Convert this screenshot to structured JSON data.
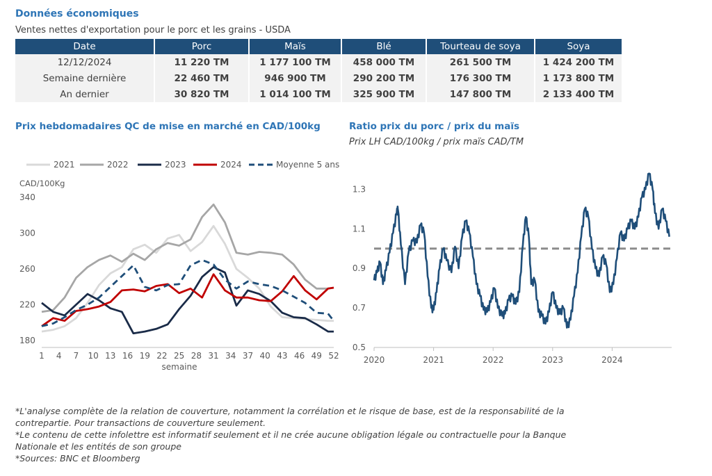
{
  "header": {
    "title": "Données économiques",
    "subtitle": "Ventes nettes d'exportation pour le porc et les grains - USDA"
  },
  "table": {
    "columns": [
      "Date",
      "Porc",
      "Maïs",
      "Blé",
      "Tourteau de soya",
      "Soya"
    ],
    "rows": [
      [
        "12/12/2024",
        "11 220 TM",
        "1 177 100 TM",
        "458 000 TM",
        "261 500 TM",
        "1 424 200 TM"
      ],
      [
        "Semaine dernière",
        "22 460 TM",
        "946 900 TM",
        "290 200 TM",
        "176 300 TM",
        "1 173 800 TM"
      ],
      [
        "An dernier",
        "30 820 TM",
        "1 014 100 TM",
        "325 900 TM",
        "147 800 TM",
        "2 133 400 TM"
      ]
    ]
  },
  "chart_data": [
    {
      "type": "line",
      "title": "Prix hebdomadaires QC de mise en marché en CAD/100kg",
      "ylabel": "CAD/100Kg",
      "xlabel": "semaine",
      "ylim": [
        180,
        340
      ],
      "xlim": [
        1,
        52
      ],
      "yticks": [
        180,
        220,
        260,
        300,
        340
      ],
      "xticks": [
        1,
        4,
        7,
        10,
        13,
        16,
        19,
        22,
        25,
        28,
        31,
        34,
        37,
        40,
        43,
        46,
        49,
        52
      ],
      "legend_position": "top",
      "series": [
        {
          "name": "2021",
          "color": "#d9d9d9",
          "dash": false,
          "x": [
            1,
            3,
            5,
            7,
            9,
            11,
            13,
            15,
            17,
            19,
            21,
            23,
            25,
            27,
            29,
            31,
            33,
            35,
            37,
            39,
            41,
            43,
            45,
            47,
            49,
            51,
            52
          ],
          "y": [
            190,
            192,
            196,
            205,
            222,
            242,
            255,
            262,
            282,
            287,
            278,
            294,
            298,
            280,
            290,
            308,
            288,
            260,
            250,
            238,
            218,
            206,
            205,
            204,
            203,
            202,
            202
          ]
        },
        {
          "name": "2022",
          "color": "#a6a6a6",
          "dash": false,
          "x": [
            1,
            3,
            5,
            7,
            9,
            11,
            13,
            15,
            17,
            19,
            21,
            23,
            25,
            27,
            29,
            31,
            33,
            35,
            37,
            39,
            41,
            43,
            45,
            47,
            49,
            51,
            52
          ],
          "y": [
            212,
            214,
            228,
            250,
            262,
            270,
            275,
            268,
            277,
            270,
            282,
            289,
            286,
            293,
            318,
            332,
            312,
            278,
            276,
            279,
            278,
            276,
            265,
            248,
            238,
            238,
            239
          ]
        },
        {
          "name": "2023",
          "color": "#1a2b48",
          "dash": false,
          "x": [
            1,
            3,
            5,
            7,
            9,
            11,
            13,
            15,
            17,
            19,
            21,
            23,
            25,
            27,
            29,
            31,
            33,
            35,
            37,
            39,
            41,
            43,
            45,
            47,
            49,
            51,
            52
          ],
          "y": [
            222,
            212,
            208,
            220,
            232,
            225,
            216,
            212,
            188,
            190,
            193,
            198,
            215,
            230,
            251,
            262,
            256,
            219,
            236,
            232,
            224,
            211,
            206,
            205,
            198,
            190,
            190
          ]
        },
        {
          "name": "2024",
          "color": "#c00000",
          "dash": false,
          "x": [
            1,
            3,
            5,
            7,
            9,
            11,
            13,
            15,
            17,
            19,
            21,
            23,
            25,
            27,
            29,
            31,
            33,
            35,
            37,
            39,
            41,
            43,
            45,
            47,
            49,
            51,
            52
          ],
          "y": [
            196,
            205,
            202,
            213,
            215,
            218,
            223,
            236,
            237,
            235,
            241,
            243,
            233,
            238,
            228,
            254,
            236,
            228,
            228,
            225,
            224,
            235,
            252,
            236,
            226,
            238,
            239
          ]
        },
        {
          "name": "Moyenne 5 ans",
          "color": "#1f4e79",
          "dash": true,
          "x": [
            1,
            3,
            5,
            7,
            9,
            11,
            13,
            15,
            17,
            19,
            21,
            23,
            25,
            27,
            29,
            31,
            33,
            35,
            37,
            39,
            41,
            43,
            45,
            47,
            49,
            51,
            52
          ],
          "y": [
            196,
            199,
            206,
            214,
            220,
            228,
            240,
            252,
            264,
            240,
            236,
            242,
            243,
            264,
            270,
            265,
            248,
            238,
            246,
            243,
            241,
            236,
            229,
            222,
            211,
            210,
            202
          ]
        }
      ]
    },
    {
      "type": "line",
      "title": "Ratio prix du porc / prix du maïs",
      "subtitle": "Prix LH CAD/100kg / prix maïs CAD/TM",
      "ylim": [
        0.5,
        1.4
      ],
      "yticks": [
        0.5,
        0.7,
        0.9,
        1.1,
        1.3
      ],
      "xticks": [
        "2020",
        "2021",
        "2022",
        "2023",
        "2024"
      ],
      "xlim": [
        2020.0,
        2025.0
      ],
      "reference_line": 1.0,
      "series": [
        {
          "name": "",
          "color": "#1f4e79",
          "x": [
            2020.0,
            2020.05,
            2020.1,
            2020.15,
            2020.2,
            2020.26,
            2020.32,
            2020.38,
            2020.4,
            2020.45,
            2020.52,
            2020.58,
            2020.65,
            2020.72,
            2020.78,
            2020.84,
            2020.9,
            2020.96,
            2021.0,
            2021.05,
            2021.1,
            2021.16,
            2021.22,
            2021.3,
            2021.36,
            2021.42,
            2021.48,
            2021.54,
            2021.6,
            2021.66,
            2021.72,
            2021.78,
            2021.84,
            2021.9,
            2021.96,
            2022.02,
            2022.08,
            2022.15,
            2022.2,
            2022.26,
            2022.32,
            2022.38,
            2022.44,
            2022.5,
            2022.55,
            2022.6,
            2022.64,
            2022.7,
            2022.76,
            2022.82,
            2022.88,
            2022.94,
            2023.0,
            2023.06,
            2023.12,
            2023.18,
            2023.24,
            2023.3,
            2023.36,
            2023.42,
            2023.48,
            2023.54,
            2023.6,
            2023.66,
            2023.72,
            2023.78,
            2023.84,
            2023.9,
            2023.96,
            2024.02,
            2024.08,
            2024.14,
            2024.2,
            2024.26,
            2024.32,
            2024.38,
            2024.44,
            2024.5,
            2024.56,
            2024.62,
            2024.68,
            2024.72,
            2024.78,
            2024.84,
            2024.9,
            2024.96
          ],
          "y": [
            0.84,
            0.88,
            0.93,
            0.82,
            0.89,
            0.98,
            1.08,
            1.18,
            1.2,
            1.02,
            0.82,
            0.98,
            1.04,
            1.03,
            1.12,
            1.08,
            0.86,
            0.7,
            0.69,
            0.78,
            0.9,
            1.0,
            0.94,
            0.88,
            1.01,
            0.9,
            1.06,
            1.14,
            1.08,
            0.96,
            0.82,
            0.76,
            0.69,
            0.68,
            0.73,
            0.8,
            0.7,
            0.66,
            0.67,
            0.74,
            0.76,
            0.72,
            0.78,
            1.02,
            1.16,
            1.06,
            0.82,
            0.84,
            0.68,
            0.66,
            0.62,
            0.68,
            0.78,
            0.7,
            0.67,
            0.7,
            0.6,
            0.64,
            0.76,
            0.88,
            1.06,
            1.2,
            1.16,
            1.0,
            0.9,
            0.86,
            0.96,
            0.92,
            0.78,
            0.82,
            0.95,
            1.08,
            1.04,
            1.1,
            1.14,
            1.1,
            1.16,
            1.26,
            1.3,
            1.38,
            1.3,
            1.18,
            1.1,
            1.2,
            1.14,
            1.06
          ]
        }
      ]
    }
  ],
  "footnotes": [
    "*L'analyse complète de la relation de couverture, notamment la corrélation et le risque de base, est de la responsabilité de la contrepartie. Pour transactions de couverture seulement.",
    "*Le contenu de cette infolettre est informatif seulement et il ne crée aucune obligation légale ou contractuelle pour la Banque Nationale et les entités de son groupe",
    "*Sources: BNC et Bloomberg"
  ]
}
